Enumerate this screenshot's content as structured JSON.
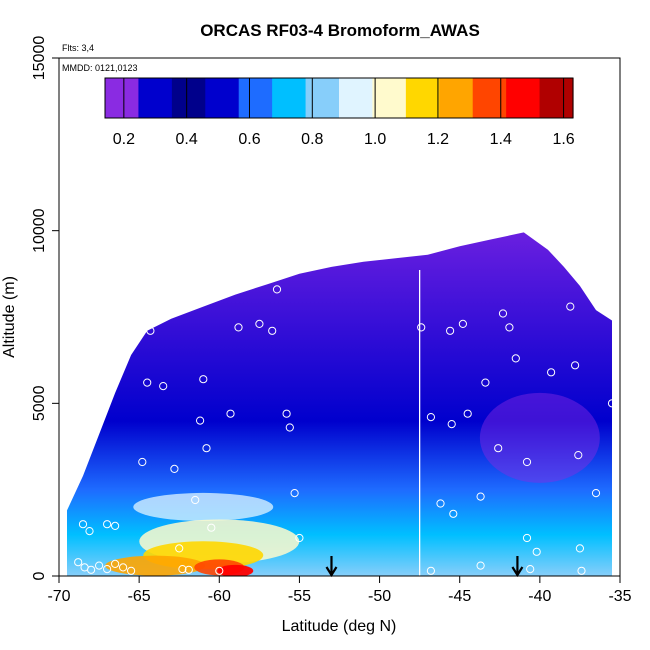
{
  "chart_data": {
    "type": "heatmap",
    "title": "ORCAS RF03-4 Bromoform_AWAS",
    "annotations": {
      "flights": "Flts: 3,4",
      "dates": "MMDD: 0121,0123"
    },
    "xlabel": "Latitude (deg N)",
    "ylabel": "Altitude (m)",
    "xlim": [
      -70,
      -35
    ],
    "ylim": [
      0,
      15000
    ],
    "xticks": [
      -70,
      -65,
      -60,
      -55,
      -50,
      -45,
      -40,
      -35
    ],
    "yticks": [
      0,
      5000,
      10000,
      15000
    ],
    "colorbar": {
      "range": [
        0.14,
        1.63
      ],
      "ticks": [
        0.2,
        0.4,
        0.6,
        0.8,
        1.0,
        1.2,
        1.4,
        1.6
      ],
      "tick_labels": [
        "0.2",
        "0.4",
        "0.6",
        "0.8",
        "1.0",
        "1.2",
        "1.4",
        "1.6"
      ],
      "colors": [
        "#8a2be2",
        "#0000cd",
        "#00008b",
        "#0000cd",
        "#1e6cff",
        "#00bfff",
        "#87cefa",
        "#e0f4ff",
        "#fffacd",
        "#ffd700",
        "#ffa500",
        "#ff4500",
        "#ff0000",
        "#b00000"
      ]
    },
    "envelope_top": [
      [
        -69.5,
        1900
      ],
      [
        -68.5,
        2900
      ],
      [
        -67.5,
        4100
      ],
      [
        -66.5,
        5300
      ],
      [
        -65.5,
        6400
      ],
      [
        -64.5,
        7100
      ],
      [
        -63,
        7450
      ],
      [
        -61,
        7800
      ],
      [
        -59,
        8150
      ],
      [
        -57,
        8450
      ],
      [
        -55,
        8750
      ],
      [
        -53,
        8950
      ],
      [
        -51,
        9100
      ],
      [
        -49,
        9200
      ],
      [
        -47,
        9300
      ],
      [
        -45,
        9550
      ],
      [
        -43,
        9750
      ],
      [
        -41,
        9950
      ],
      [
        -39.5,
        9450
      ],
      [
        -38.5,
        8950
      ],
      [
        -37.5,
        8400
      ],
      [
        -36.5,
        7700
      ],
      [
        -35.5,
        7400
      ]
    ],
    "sample_points": [
      [
        -68.8,
        400
      ],
      [
        -68.4,
        250
      ],
      [
        -68,
        180
      ],
      [
        -67.5,
        300
      ],
      [
        -67,
        200
      ],
      [
        -66.5,
        350
      ],
      [
        -66,
        250
      ],
      [
        -65.5,
        150
      ],
      [
        -62.3,
        200
      ],
      [
        -60,
        150
      ],
      [
        -68.5,
        1500
      ],
      [
        -68.1,
        1300
      ],
      [
        -67,
        1500
      ],
      [
        -66.5,
        1450
      ],
      [
        -62.5,
        800
      ],
      [
        -61.5,
        2200
      ],
      [
        -60.5,
        1400
      ],
      [
        -55.3,
        2400
      ],
      [
        -55,
        1100
      ],
      [
        -64.8,
        3300
      ],
      [
        -62.8,
        3100
      ],
      [
        -61.2,
        4500
      ],
      [
        -60.8,
        3700
      ],
      [
        -59.3,
        4700
      ],
      [
        -55.8,
        4700
      ],
      [
        -55.6,
        4300
      ],
      [
        -64.5,
        5600
      ],
      [
        -63.5,
        5500
      ],
      [
        -61,
        5700
      ],
      [
        -64.3,
        7100
      ],
      [
        -58.8,
        7200
      ],
      [
        -57.5,
        7300
      ],
      [
        -56.7,
        7100
      ],
      [
        -56.4,
        8300
      ],
      [
        -47.4,
        7200
      ],
      [
        -45.6,
        7100
      ],
      [
        -44.8,
        7300
      ],
      [
        -43.4,
        5600
      ],
      [
        -41.9,
        7200
      ],
      [
        -42.3,
        7600
      ],
      [
        -41.5,
        6300
      ],
      [
        -39.3,
        5900
      ],
      [
        -38.1,
        7800
      ],
      [
        -37.8,
        6100
      ],
      [
        -44.5,
        4700
      ],
      [
        -45.5,
        4400
      ],
      [
        -46.8,
        4600
      ],
      [
        -42.6,
        3700
      ],
      [
        -40.8,
        3300
      ],
      [
        -37.6,
        3500
      ],
      [
        -36.5,
        2400
      ],
      [
        -35.5,
        5000
      ],
      [
        -35.2,
        7600
      ],
      [
        -43.7,
        2300
      ],
      [
        -46.2,
        2100
      ],
      [
        -45.4,
        1800
      ],
      [
        -40.8,
        1100
      ],
      [
        -40.2,
        700
      ],
      [
        -37.5,
        800
      ],
      [
        -37.4,
        150
      ],
      [
        -43.7,
        300
      ],
      [
        -40.6,
        200
      ],
      [
        -46.8,
        150
      ],
      [
        -61.9,
        180
      ]
    ],
    "arrows_at_latitude": [
      -53,
      -41.4
    ],
    "vertical_line_latitude": -47.5
  }
}
